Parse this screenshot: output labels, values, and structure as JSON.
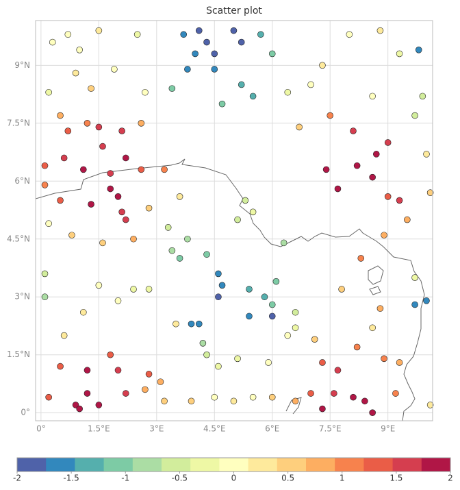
{
  "chart_data": {
    "type": "scatter",
    "title": "Scatter plot",
    "x": [
      4.1,
      4.3,
      4.5,
      5.0,
      5.2,
      4.0,
      3.7,
      5.7,
      4.5,
      3.8,
      5.2,
      5.5,
      4.7,
      6.0,
      3.4,
      0.3,
      0.7,
      1.0,
      1.5,
      2.5,
      0.9,
      1.3,
      0.2,
      1.9,
      2.7,
      0.5,
      1.2,
      0.7,
      1.5,
      2.1,
      2.6,
      1.6,
      2.2,
      0.1,
      0.6,
      1.1,
      1.8,
      2.6,
      3.2,
      1.8,
      2.0,
      1.3,
      2.1,
      2.2,
      0.1,
      0.5,
      0.2,
      0.8,
      1.6,
      2.4,
      3.3,
      3.8,
      3.6,
      4.3,
      3.4,
      2.8,
      3.6,
      4.6,
      4.7,
      4.6,
      5.4,
      5.8,
      6.0,
      5.4,
      6.0,
      4.1,
      3.9,
      4.2,
      5.1,
      5.5,
      5.3,
      6.3,
      6.1,
      6.6,
      8.2,
      8.6,
      8.1,
      8.7,
      9.0,
      7.4,
      7.7,
      9.0,
      9.3,
      9.5,
      8.9,
      8.3,
      9.7,
      9.7,
      10.0,
      9.8,
      9.3,
      8.8,
      8.0,
      8.6,
      9.9,
      9.7,
      10.0,
      10.1,
      7.5,
      7.0,
      7.3,
      6.4,
      6.7,
      0.2,
      0.9,
      1.0,
      1.2,
      1.5,
      2.2,
      2.7,
      3.2,
      3.9,
      4.5,
      5.0,
      5.5,
      6.0,
      6.6,
      7.0,
      7.3,
      7.6,
      8.1,
      8.4,
      8.6,
      9.2,
      10.1,
      0.5,
      1.2,
      1.8,
      2.0,
      2.8,
      3.1,
      4.3,
      4.6,
      5.1,
      5.9,
      7.3,
      7.7,
      8.2,
      8.9,
      9.3,
      0.6,
      1.1,
      2.0,
      2.8,
      3.5,
      6.4,
      7.1,
      8.6,
      8.8,
      0.1,
      0.1,
      1.5,
      2.4,
      7.8,
      6.6
    ],
    "values": [
      9.9,
      9.6,
      9.3,
      9.9,
      9.6,
      9.3,
      9.8,
      9.8,
      8.9,
      8.9,
      8.5,
      8.2,
      8.0,
      9.3,
      8.4,
      9.6,
      9.8,
      9.4,
      9.9,
      9.8,
      8.8,
      8.4,
      8.3,
      8.9,
      8.3,
      7.7,
      7.5,
      7.3,
      7.4,
      7.3,
      7.5,
      6.9,
      6.6,
      6.4,
      6.6,
      6.3,
      6.2,
      6.3,
      6.3,
      5.8,
      5.6,
      5.4,
      5.2,
      5.0,
      5.9,
      5.5,
      4.9,
      4.6,
      4.4,
      4.5,
      4.8,
      4.5,
      4.0,
      4.1,
      4.2,
      5.3,
      5.6,
      3.6,
      3.3,
      3.0,
      3.2,
      3.0,
      2.8,
      2.5,
      2.5,
      2.3,
      2.3,
      1.8,
      5.0,
      5.2,
      5.5,
      4.4,
      3.4,
      2.6,
      6.4,
      6.1,
      7.3,
      6.7,
      7.0,
      6.3,
      5.8,
      5.6,
      5.5,
      5.0,
      4.6,
      4.0,
      3.5,
      2.8,
      2.9,
      9.4,
      9.3,
      9.9,
      9.8,
      8.2,
      8.2,
      7.7,
      6.7,
      5.7,
      7.7,
      8.5,
      9.0,
      8.3,
      7.4,
      0.4,
      0.2,
      0.1,
      0.5,
      0.2,
      0.5,
      0.6,
      0.3,
      0.3,
      0.4,
      0.3,
      0.4,
      0.4,
      0.3,
      0.5,
      0.1,
      0.5,
      0.4,
      0.3,
      0.0,
      0.5,
      0.2,
      1.2,
      1.1,
      1.5,
      1.1,
      1.0,
      0.8,
      1.5,
      1.2,
      1.4,
      1.3,
      1.3,
      1.1,
      1.7,
      1.4,
      1.3,
      2.0,
      2.6,
      2.9,
      3.2,
      2.3,
      2.0,
      1.9,
      2.2,
      2.7,
      3.6,
      3.0,
      3.3,
      3.2,
      3.2,
      2.2
    ],
    "color_values": [
      -1.9,
      -1.9,
      -1.8,
      -1.9,
      -1.8,
      -1.7,
      -1.5,
      -1.3,
      -1.6,
      -1.5,
      -1.4,
      -1.3,
      -1.1,
      -1.1,
      -1.0,
      0.0,
      0.1,
      0.0,
      0.2,
      -0.3,
      0.2,
      0.5,
      -0.3,
      0.1,
      0.0,
      0.8,
      1.0,
      1.3,
      1.7,
      1.6,
      0.8,
      1.7,
      1.8,
      1.2,
      1.6,
      1.9,
      1.6,
      1.3,
      1.0,
      1.9,
      1.8,
      1.9,
      1.6,
      1.5,
      1.0,
      1.3,
      0.1,
      0.6,
      0.5,
      0.7,
      -0.5,
      -0.8,
      -1.1,
      -1.2,
      -0.7,
      0.4,
      0.3,
      -1.6,
      -1.5,
      -1.8,
      -1.4,
      -1.3,
      -1.1,
      -1.7,
      -1.8,
      -1.5,
      -1.6,
      -0.9,
      -0.5,
      -0.4,
      -0.5,
      -0.8,
      -1.0,
      -0.6,
      1.8,
      1.9,
      1.5,
      1.9,
      1.7,
      1.8,
      1.9,
      1.2,
      1.5,
      0.8,
      0.9,
      1.1,
      -0.2,
      -1.5,
      -1.7,
      -1.6,
      -0.2,
      0.2,
      -0.1,
      0.0,
      -0.5,
      -0.6,
      0.3,
      0.5,
      1.1,
      0.1,
      0.3,
      -0.2,
      0.6,
      1.3,
      1.9,
      1.8,
      1.9,
      2.0,
      1.5,
      0.9,
      0.5,
      0.4,
      0.1,
      0.2,
      0.0,
      0.6,
      0.9,
      1.4,
      1.9,
      1.6,
      1.9,
      1.9,
      1.8,
      1.0,
      0.3,
      1.2,
      1.8,
      1.2,
      1.6,
      1.3,
      0.9,
      -0.5,
      -0.4,
      -0.3,
      0.0,
      1.3,
      1.7,
      1.1,
      1.1,
      0.8,
      0.2,
      0.3,
      0.0,
      -0.4,
      0.2,
      0.0,
      0.6,
      0.3,
      0.7,
      -0.6,
      -0.7,
      0.1,
      -0.3,
      0.4,
      -0.3
    ],
    "xlim": [
      -0.14,
      10.16
    ],
    "ylim": [
      -0.21,
      10.16
    ],
    "xticks": [
      {
        "value": 0,
        "label": "0°"
      },
      {
        "value": 1.5,
        "label": "1.5°E"
      },
      {
        "value": 3,
        "label": "3°E"
      },
      {
        "value": 4.5,
        "label": "4.5°E"
      },
      {
        "value": 6,
        "label": "6°E"
      },
      {
        "value": 7.5,
        "label": "7.5°E"
      },
      {
        "value": 9,
        "label": "9°E"
      }
    ],
    "yticks": [
      {
        "value": 0,
        "label": "0°"
      },
      {
        "value": 1.5,
        "label": "1.5°N"
      },
      {
        "value": 3,
        "label": "3°N"
      },
      {
        "value": 4.5,
        "label": "4.5°N"
      },
      {
        "value": 6,
        "label": "6°N"
      },
      {
        "value": 7.5,
        "label": "7.5°N"
      },
      {
        "value": 9,
        "label": "9°N"
      }
    ],
    "grid": true,
    "clim": [
      -2,
      2
    ],
    "cticks": [
      -2,
      -1.5,
      -1,
      -0.5,
      0,
      0.5,
      1,
      1.5,
      2
    ],
    "colormap": [
      "#4f62a9",
      "#3288bd",
      "#55afad",
      "#7dcba5",
      "#abdda4",
      "#d2ed9c",
      "#eef8a5",
      "#ffffbf",
      "#feea9c",
      "#fecf7d",
      "#fdae61",
      "#f7824d",
      "#ea5d47",
      "#d53e4f",
      "#b01646"
    ]
  }
}
